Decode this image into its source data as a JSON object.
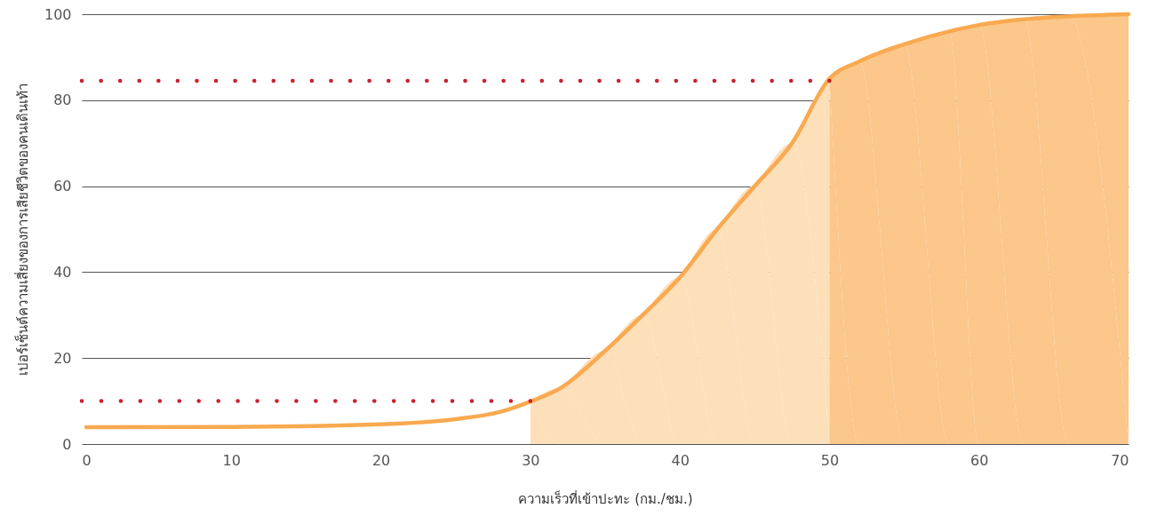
{
  "chart_data": {
    "type": "line",
    "xlabel": "ความเร็วที่เข้าปะทะ (กม./ชม.)",
    "ylabel": "เปอร์เซ็นต์ความเสี่ยงของการเสียชีวิตของคนเดินเท้า",
    "xlim": [
      0,
      70
    ],
    "xticks": [
      0,
      10,
      20,
      30,
      40,
      50,
      60,
      70
    ],
    "ylim": [
      0,
      100
    ],
    "yticks": [
      0,
      20,
      40,
      60,
      80,
      100
    ],
    "grid": "y",
    "marker": "none",
    "series": [
      {
        "type": "area",
        "color": "#fddfb9",
        "x": [
          30,
          32,
          35,
          37.5,
          40,
          42.5,
          45,
          47.5,
          50
        ],
        "values": [
          9.9,
          13,
          21.7,
          30,
          38.8,
          50,
          60,
          70,
          85
        ]
      },
      {
        "type": "area",
        "color": "#fbc78a",
        "x": [
          50,
          52,
          55,
          58,
          60,
          63,
          66,
          70
        ],
        "values": [
          85,
          89,
          93,
          96,
          97.5,
          98.8,
          99.5,
          100
        ]
      },
      {
        "color": "#f9a94f",
        "line_style": "solid",
        "x": [
          0.3,
          10,
          20,
          25,
          28,
          30,
          32,
          35,
          37.5,
          40,
          42.5,
          45,
          47.5,
          50,
          52,
          55,
          58,
          60,
          63,
          66,
          70
        ],
        "values": [
          3.9,
          4,
          4.6,
          5.8,
          7.5,
          9.9,
          13,
          21.7,
          30,
          38.8,
          50,
          60,
          70,
          85,
          89,
          93,
          96,
          97.5,
          98.8,
          99.5,
          100
        ]
      },
      {
        "type": "line",
        "color": "#cc1f2f",
        "line_style": "dotted",
        "x": [
          0,
          30
        ],
        "values": [
          10,
          10
        ]
      },
      {
        "type": "line",
        "color": "#cc1f2f",
        "line_style": "dotted",
        "x": [
          0,
          50
        ],
        "values": [
          84.5,
          84.5
        ]
      }
    ]
  }
}
